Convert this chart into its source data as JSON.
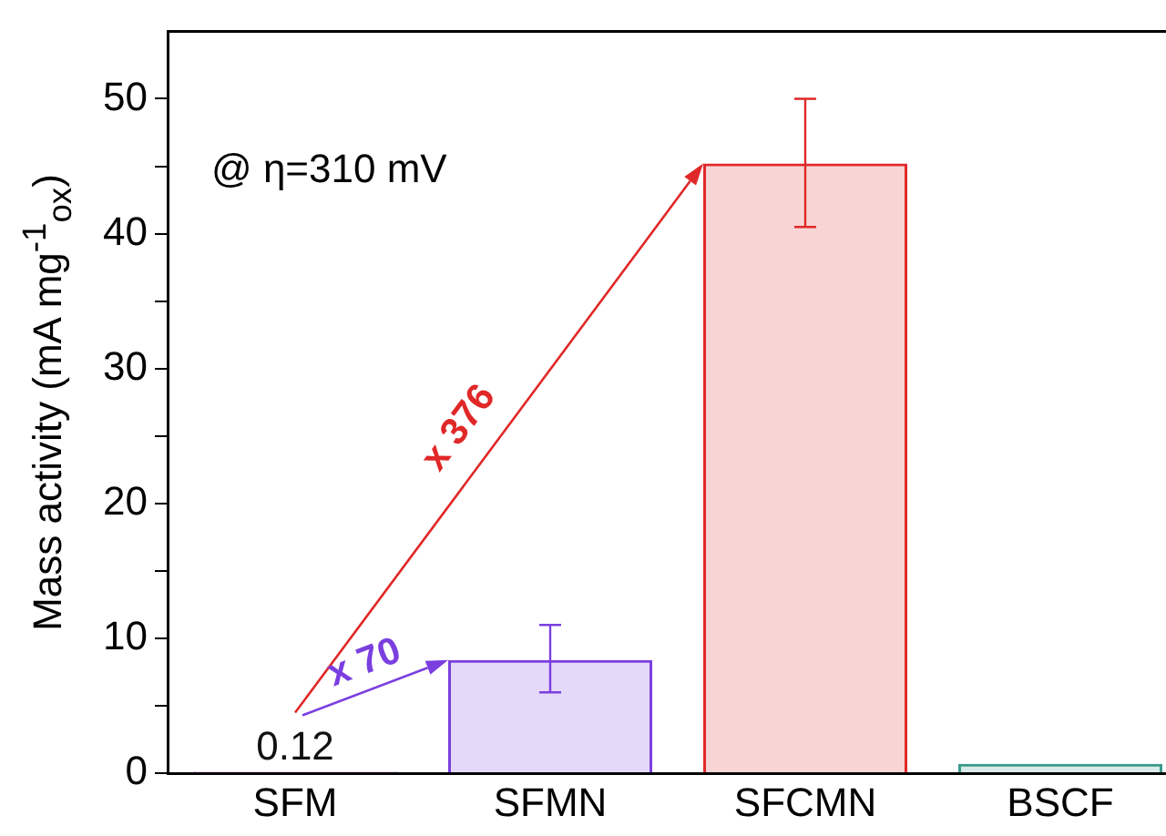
{
  "chart_data": {
    "type": "bar",
    "ylabel": "Mass activity (mA mg$^{-1}$$_{ox}$)",
    "categories": [
      "SFM",
      "SFMN",
      "SFCMN",
      "BSCF"
    ],
    "values": [
      0.12,
      8.4,
      45.2,
      0.7
    ],
    "colors": [
      "#7a1f8a",
      "#7b3fe0",
      "#e02828",
      "#3a9a8a"
    ],
    "errors": [
      null,
      [
        6,
        11
      ],
      [
        40.5,
        50
      ],
      null
    ],
    "value_labels": [
      "0.12",
      null,
      null,
      null
    ],
    "ylim": [
      0,
      55
    ],
    "yticks": [
      0,
      {
        "value": 5,
        "label": null
      },
      10,
      {
        "value": 15,
        "label": null
      },
      20,
      {
        "value": 25,
        "label": null
      },
      30,
      {
        "value": 35,
        "label": null
      },
      40,
      {
        "value": 45,
        "label": null
      },
      50
    ],
    "annotations": [
      "@ η=310 mV",
      "x 376",
      "x 70"
    ],
    "grid": false,
    "legend": false
  }
}
